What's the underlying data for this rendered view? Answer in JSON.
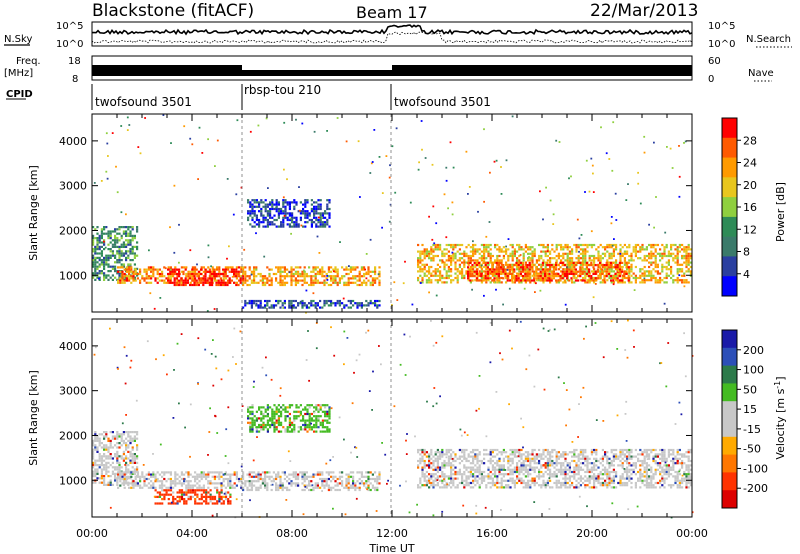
{
  "header": {
    "station": "Blackstone (fitACF)",
    "beam": "Beam 17",
    "date": "22/Mar/2013"
  },
  "summary_panels": {
    "nsky_label": "N.Sky",
    "nsearch_label": "N.Search",
    "count_ticks": [
      "10^5",
      "10^0"
    ],
    "freq_label_line1": "Freq.",
    "freq_label_line2": "[MHz]",
    "freq_ticks": [
      "18",
      "8"
    ],
    "nave_label": "Nave",
    "nave_ticks": [
      "60",
      "0"
    ],
    "cpid_label": "CPID",
    "cpid_segments": [
      {
        "name": "twofsound 3501",
        "start_h": 0,
        "end_h": 6
      },
      {
        "name": "rbsp-tou 210",
        "start_h": 6,
        "end_h": 12
      },
      {
        "name": "twofsound 3501",
        "start_h": 12,
        "end_h": 24
      }
    ]
  },
  "colors": {
    "power": [
      "#0000ff",
      "#2a3fa0",
      "#3a7a6a",
      "#2e8b57",
      "#8fcf3f",
      "#e8c61e",
      "#ff9a00",
      "#ff5a00",
      "#ff0000"
    ],
    "velocity": [
      "#1a1aa8",
      "#2c4fb8",
      "#2c7a4a",
      "#44bb22",
      "#c8c8c8",
      "#c8c8c8",
      "#ffaa00",
      "#ff7700",
      "#ff3300",
      "#dd0000"
    ]
  },
  "chart_data": [
    {
      "type": "heatmap",
      "title": "Power",
      "ylabel": "Slant Range [km]",
      "xlabel": "",
      "x_unit": "hours UT",
      "xlim": [
        0,
        24
      ],
      "ylim": [
        180,
        4600
      ],
      "yticks": [
        "1000",
        "2000",
        "3000",
        "4000"
      ],
      "colorbar": {
        "label": "Power [dB]",
        "range": [
          0,
          32
        ],
        "ticks": [
          "4",
          "8",
          "12",
          "16",
          "20",
          "24",
          "28"
        ]
      },
      "regions": [
        {
          "t0": 0.0,
          "t1": 1.8,
          "r0": 900,
          "r1": 2100,
          "level": 0.35
        },
        {
          "t0": 1.0,
          "t1": 6.0,
          "r0": 850,
          "r1": 1200,
          "level": 0.75
        },
        {
          "t0": 3.0,
          "t1": 6.0,
          "r0": 800,
          "r1": 1150,
          "level": 0.95
        },
        {
          "t0": 6.0,
          "t1": 11.5,
          "r0": 800,
          "r1": 1200,
          "level": 0.7
        },
        {
          "t0": 6.2,
          "t1": 9.5,
          "r0": 2100,
          "r1": 2700,
          "level": 0.15
        },
        {
          "t0": 6.0,
          "t1": 11.5,
          "r0": 300,
          "r1": 450,
          "level": 0.2
        },
        {
          "t0": 13.0,
          "t1": 24.0,
          "r0": 850,
          "r1": 1700,
          "level": 0.65
        },
        {
          "t0": 15.0,
          "t1": 21.5,
          "r0": 900,
          "r1": 1300,
          "level": 0.85
        }
      ]
    },
    {
      "type": "heatmap",
      "title": "Velocity",
      "ylabel": "Slant Range [km]",
      "xlabel": "Time UT",
      "x_unit": "hours UT",
      "xlim": [
        0,
        24
      ],
      "ylim": [
        180,
        4600
      ],
      "xticks": [
        "00:00",
        "04:00",
        "08:00",
        "12:00",
        "16:00",
        "20:00",
        "00:00"
      ],
      "yticks": [
        "1000",
        "2000",
        "3000",
        "4000"
      ],
      "colorbar": {
        "label": "Velocity [m s",
        "label_exp": "-1",
        "label_end": "]",
        "ticks": [
          "200",
          "100",
          "50",
          "15",
          "-15",
          "-50",
          "-100",
          "-200"
        ]
      },
      "regions": [
        {
          "t0": 0.0,
          "t1": 1.8,
          "r0": 900,
          "r1": 2100,
          "level": 0.5
        },
        {
          "t0": 1.0,
          "t1": 6.0,
          "r0": 850,
          "r1": 1200,
          "level": 0.5
        },
        {
          "t0": 2.5,
          "t1": 5.5,
          "r0": 500,
          "r1": 800,
          "level": 0.85
        },
        {
          "t0": 6.0,
          "t1": 11.5,
          "r0": 800,
          "r1": 1200,
          "level": 0.5
        },
        {
          "t0": 6.2,
          "t1": 9.5,
          "r0": 2100,
          "r1": 2700,
          "level": 0.35
        },
        {
          "t0": 13.0,
          "t1": 24.0,
          "r0": 850,
          "r1": 1700,
          "level": 0.5
        }
      ]
    }
  ]
}
